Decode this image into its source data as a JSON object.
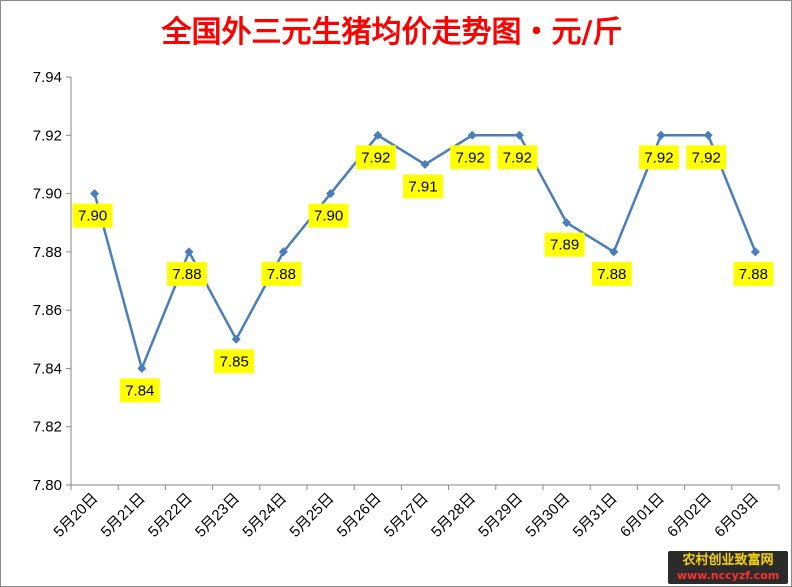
{
  "chart_data": {
    "type": "line",
    "title": "全国外三元生猪均价走势图・元/斤",
    "categories": [
      "5月20日",
      "5月21日",
      "5月22日",
      "5月23日",
      "5月24日",
      "5月25日",
      "5月26日",
      "5月27日",
      "5月28日",
      "5月29日",
      "5月30日",
      "5月31日",
      "6月01日",
      "6月02日",
      "6月03日"
    ],
    "series": [
      {
        "values": [
          7.9,
          7.84,
          7.88,
          7.85,
          7.88,
          7.9,
          7.92,
          7.91,
          7.92,
          7.92,
          7.89,
          7.88,
          7.92,
          7.92,
          7.88
        ]
      }
    ],
    "data_labels": [
      "7.90",
      "7.84",
      "7.88",
      "7.85",
      "7.88",
      "7.90",
      "7.92",
      "7.91",
      "7.92",
      "7.92",
      "7.89",
      "7.88",
      "7.92",
      "7.92",
      "7.88"
    ],
    "yticks": [
      "7.80",
      "7.82",
      "7.84",
      "7.86",
      "7.88",
      "7.90",
      "7.92",
      "7.94"
    ],
    "ylim": [
      7.8,
      7.94
    ],
    "xlabel": "",
    "ylabel": "",
    "grid": false,
    "legend": "none",
    "colors": {
      "line": "#4a7ebb",
      "label_bg": "#ffff00",
      "title": "#ff0000"
    }
  },
  "watermark": {
    "name": "农村创业致富网",
    "url": "www.nccyzf.com"
  }
}
